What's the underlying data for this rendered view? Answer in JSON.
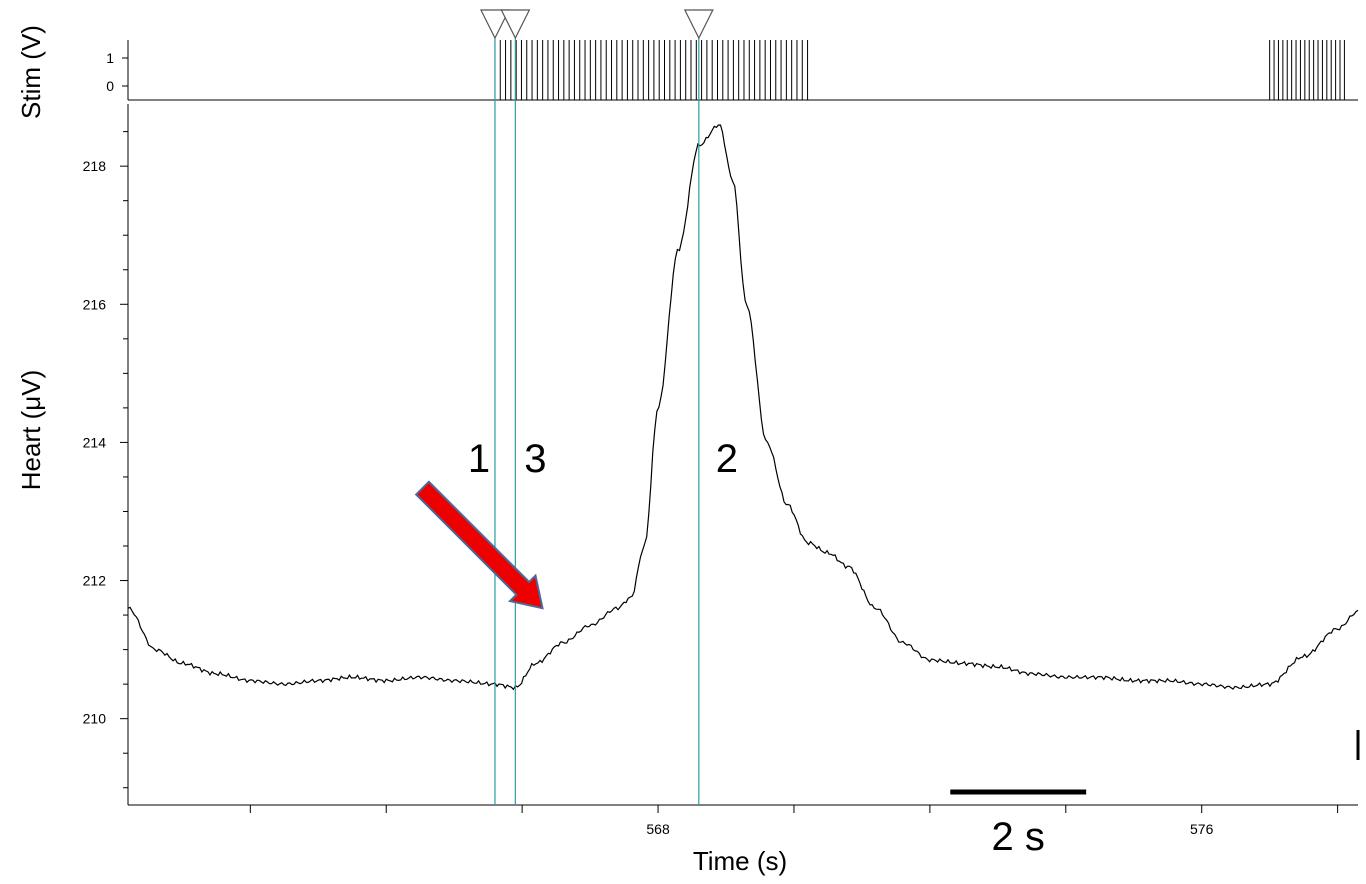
{
  "chart_data": [
    {
      "type": "line",
      "ylabel": "Stim (V)",
      "yticks": [
        "1",
        "0"
      ],
      "ylim": [
        0,
        1
      ],
      "series": [
        {
          "name": "",
          "color": "#000000",
          "pulse_trains": [
            {
              "start": 565.6,
              "end": 570.2,
              "amplitude": 1,
              "pulses": 60
            },
            {
              "start": 577.0,
              "end": 578.1,
              "amplitude": 1,
              "pulses": 18
            }
          ]
        }
      ]
    },
    {
      "type": "line",
      "ylabel": "Heart  (μV)",
      "xlabel": "Time (s)",
      "xlim": [
        560.2,
        578.3
      ],
      "ylim": [
        208.75,
        218.9
      ],
      "xticks": [
        "568",
        "576"
      ],
      "yticks": [
        "218",
        "216",
        "214",
        "212",
        "210"
      ],
      "grid": false,
      "series": [
        {
          "name": "",
          "color": "#000000",
          "x": [
            560.2,
            560.6,
            561.0,
            561.5,
            562.0,
            562.5,
            563.0,
            563.5,
            564.0,
            564.5,
            565.0,
            565.6,
            565.9,
            566.2,
            566.6,
            567.0,
            567.4,
            567.6,
            567.8,
            568.0,
            568.3,
            568.6,
            568.9,
            569.1,
            569.3,
            569.6,
            569.9,
            570.2,
            570.5,
            570.8,
            571.2,
            571.6,
            572.0,
            572.5,
            573.0,
            573.5,
            574.0,
            574.5,
            575.0,
            575.5,
            576.0,
            576.5,
            577.0,
            577.5,
            578.0,
            578.3
          ],
          "y": [
            211.6,
            211.0,
            210.8,
            210.65,
            210.55,
            210.5,
            210.55,
            210.6,
            210.55,
            210.6,
            210.55,
            210.5,
            210.45,
            210.8,
            211.1,
            211.35,
            211.6,
            211.75,
            212.5,
            214.5,
            216.8,
            218.3,
            218.6,
            217.8,
            216.0,
            214.0,
            213.1,
            212.55,
            212.4,
            212.2,
            211.6,
            211.1,
            210.85,
            210.8,
            210.75,
            210.65,
            210.6,
            210.6,
            210.55,
            210.55,
            210.5,
            210.45,
            210.5,
            210.9,
            211.3,
            211.55
          ]
        }
      ],
      "cursors": [
        {
          "label": "1",
          "x": 565.6,
          "color": "#2a9da0"
        },
        {
          "label": "3",
          "x": 565.9,
          "color": "#2a9da0"
        },
        {
          "label": "2",
          "x": 568.6,
          "color": "#2a9da0"
        }
      ],
      "annotations": {
        "arrow_color": "#ee0000",
        "arrow_outline": "#4a6a9a",
        "arrow_target_x": 566.3,
        "arrow_target_y": 211.6,
        "scale_bar": {
          "label": "2 s",
          "duration": 2
        }
      }
    }
  ]
}
